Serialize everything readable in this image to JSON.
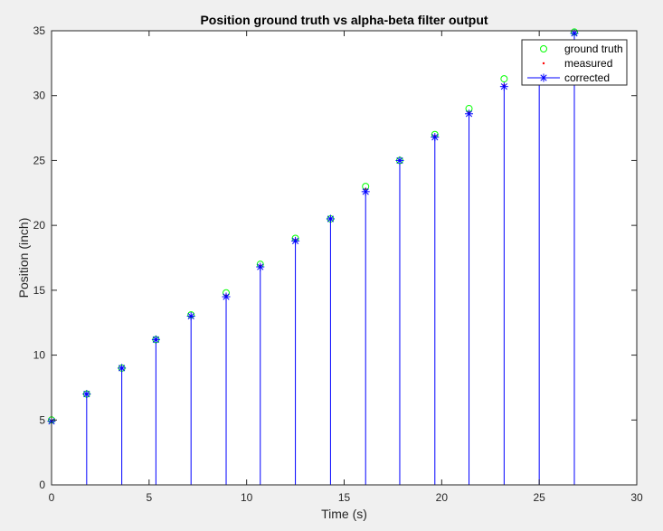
{
  "chart_data": {
    "type": "scatter",
    "title": "Position ground truth vs alpha-beta filter output",
    "xlabel": "Time (s)",
    "ylabel": "Position (inch)",
    "xlim": [
      0,
      30
    ],
    "ylim": [
      0,
      35
    ],
    "xticks": [
      0,
      5,
      10,
      15,
      20,
      25,
      30
    ],
    "yticks": [
      0,
      5,
      10,
      15,
      20,
      25,
      30,
      35
    ],
    "xtick_labels": [
      "0",
      "5",
      "10",
      "15",
      "20",
      "25",
      "30"
    ],
    "ytick_labels": [
      "0",
      "5",
      "10",
      "15",
      "20",
      "25",
      "30",
      "35"
    ],
    "grid": false,
    "legend_position": "top-right",
    "x": [
      0,
      1.8,
      3.6,
      5.35,
      7.15,
      8.95,
      10.7,
      12.5,
      14.3,
      16.1,
      17.85,
      19.65,
      21.4,
      23.2,
      25.0,
      26.8
    ],
    "series": [
      {
        "name": "ground truth",
        "marker": "circle",
        "color": "#00ff00",
        "values": [
          5.0,
          7.0,
          9.0,
          11.2,
          13.1,
          14.8,
          17.0,
          19.0,
          20.5,
          23.0,
          25.0,
          27.0,
          29.0,
          31.3,
          33.2,
          34.9
        ]
      },
      {
        "name": "measured",
        "marker": "dot",
        "color": "#ff0000",
        "values": [
          4.9,
          7.0,
          9.0,
          11.2,
          13.0,
          14.6,
          16.9,
          18.9,
          20.5,
          22.8,
          25.0,
          26.9,
          28.7,
          30.8,
          32.9,
          34.8
        ]
      },
      {
        "name": "corrected",
        "marker": "asterisk",
        "style": "stem",
        "color": "#0000ff",
        "values": [
          4.9,
          7.0,
          9.0,
          11.2,
          13.0,
          14.5,
          16.8,
          18.8,
          20.5,
          22.6,
          25.0,
          26.8,
          28.6,
          30.7,
          32.8,
          34.8
        ]
      }
    ]
  }
}
